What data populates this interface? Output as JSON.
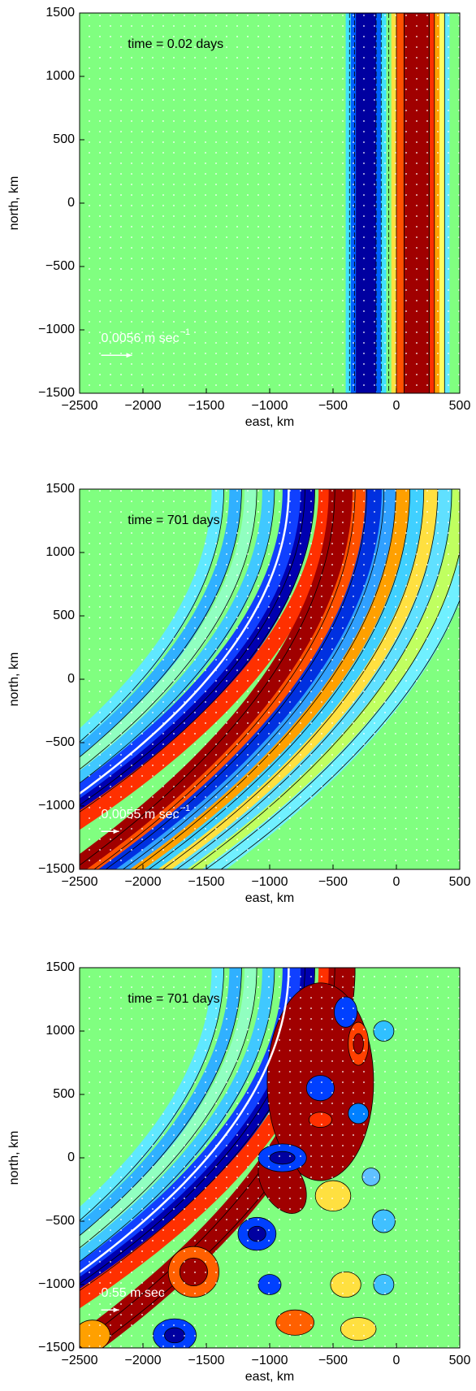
{
  "chart_data": [
    {
      "type": "contour",
      "annotation": "time = 0.02 days",
      "vector_label": "0.0056 m sec",
      "vector_label_exponent": "−1",
      "xlabel": "east, km",
      "ylabel": "north, km",
      "xlim": [
        -2500,
        500
      ],
      "ylim": [
        -1500,
        1500
      ],
      "xticks": [
        {
          "value": -2500,
          "label": "−2500"
        },
        {
          "value": -2000,
          "label": "−2000"
        },
        {
          "value": -1500,
          "label": "−1500"
        },
        {
          "value": -1000,
          "label": "−1000"
        },
        {
          "value": -500,
          "label": "−500"
        },
        0,
        500
      ],
      "yticks": [
        {
          "value": -1500,
          "label": "−1500"
        },
        {
          "value": -1000,
          "label": "−1000"
        },
        {
          "value": -500,
          "label": "−500"
        },
        0,
        500,
        1000,
        1500
      ]
    },
    {
      "type": "contour",
      "annotation": "time = 701 days",
      "vector_label": "0.0055 m sec",
      "vector_label_exponent": "−1",
      "xlabel": "east, km",
      "ylabel": "north, km",
      "xlim": [
        -2500,
        500
      ],
      "ylim": [
        -1500,
        1500
      ],
      "xticks": [
        {
          "value": -2500,
          "label": "−2500"
        },
        {
          "value": -2000,
          "label": "−2000"
        },
        {
          "value": -1500,
          "label": "−1500"
        },
        {
          "value": -1000,
          "label": "−1000"
        },
        {
          "value": -500,
          "label": "−500"
        },
        0,
        500
      ],
      "yticks": [
        {
          "value": -1500,
          "label": "−1500"
        },
        {
          "value": -1000,
          "label": "−1000"
        },
        {
          "value": -500,
          "label": "−500"
        },
        0,
        500,
        1000,
        1500
      ]
    },
    {
      "type": "contour",
      "annotation": "time = 701 days",
      "vector_label": "0.55 m sec",
      "xlabel": "east, km",
      "ylabel": "north, km",
      "xlim": [
        -2500,
        500
      ],
      "ylim": [
        -1500,
        1500
      ],
      "xticks": [
        {
          "value": -2500,
          "label": "−2500"
        },
        {
          "value": -2000,
          "label": "−2000"
        },
        {
          "value": -1500,
          "label": "−1500"
        },
        {
          "value": -1000,
          "label": "−1000"
        },
        {
          "value": -500,
          "label": "−500"
        },
        0,
        500
      ],
      "yticks": [
        {
          "value": -1500,
          "label": "−1500"
        },
        {
          "value": -1000,
          "label": "−1000"
        },
        {
          "value": -500,
          "label": "−500"
        },
        0,
        500,
        1000,
        1500
      ]
    }
  ]
}
